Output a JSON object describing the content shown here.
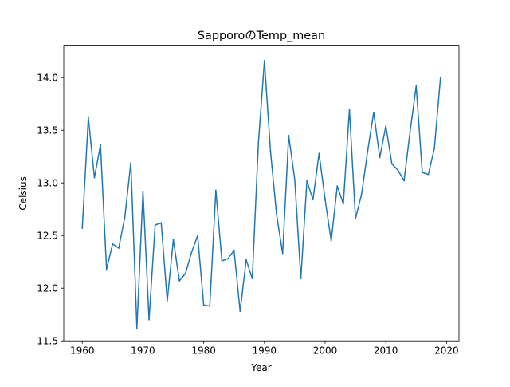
{
  "chart_data": {
    "type": "line",
    "title": "SapporoのTemp_mean",
    "xlabel": "Year",
    "ylabel": "Celsius",
    "xlim": [
      1956.95,
      2022.05
    ],
    "ylim": [
      11.5,
      14.3
    ],
    "x_ticks": [
      1960,
      1970,
      1980,
      1990,
      2000,
      2010,
      2020
    ],
    "y_ticks": [
      "11.5",
      "12.0",
      "12.5",
      "13.0",
      "13.5",
      "14.0"
    ],
    "grid": false,
    "series": [
      {
        "color": "#1f77b4",
        "x": [
          1960,
          1961,
          1962,
          1963,
          1964,
          1965,
          1966,
          1967,
          1968,
          1969,
          1970,
          1971,
          1972,
          1973,
          1974,
          1975,
          1976,
          1977,
          1978,
          1979,
          1980,
          1981,
          1982,
          1983,
          1984,
          1985,
          1986,
          1987,
          1988,
          1989,
          1990,
          1991,
          1992,
          1993,
          1994,
          1995,
          1996,
          1997,
          1998,
          1999,
          2000,
          2001,
          2002,
          2003,
          2004,
          2005,
          2006,
          2007,
          2008,
          2009,
          2010,
          2011,
          2012,
          2013,
          2014,
          2015,
          2016,
          2017,
          2018,
          2019
        ],
        "values": [
          12.57,
          13.62,
          13.05,
          13.36,
          12.18,
          12.42,
          12.38,
          12.67,
          13.19,
          11.62,
          12.92,
          11.7,
          12.6,
          12.62,
          11.88,
          12.46,
          12.07,
          12.14,
          12.34,
          12.5,
          11.84,
          11.83,
          12.93,
          12.26,
          12.28,
          12.36,
          11.78,
          12.27,
          12.09,
          13.37,
          14.16,
          13.3,
          12.7,
          12.33,
          13.45,
          13.03,
          12.09,
          13.02,
          12.84,
          13.28,
          12.84,
          12.45,
          12.97,
          12.8,
          13.7,
          12.66,
          12.89,
          13.3,
          13.67,
          13.24,
          13.54,
          13.18,
          13.12,
          13.02,
          13.49,
          13.92,
          13.1,
          13.08,
          13.33,
          14.0
        ]
      }
    ]
  }
}
